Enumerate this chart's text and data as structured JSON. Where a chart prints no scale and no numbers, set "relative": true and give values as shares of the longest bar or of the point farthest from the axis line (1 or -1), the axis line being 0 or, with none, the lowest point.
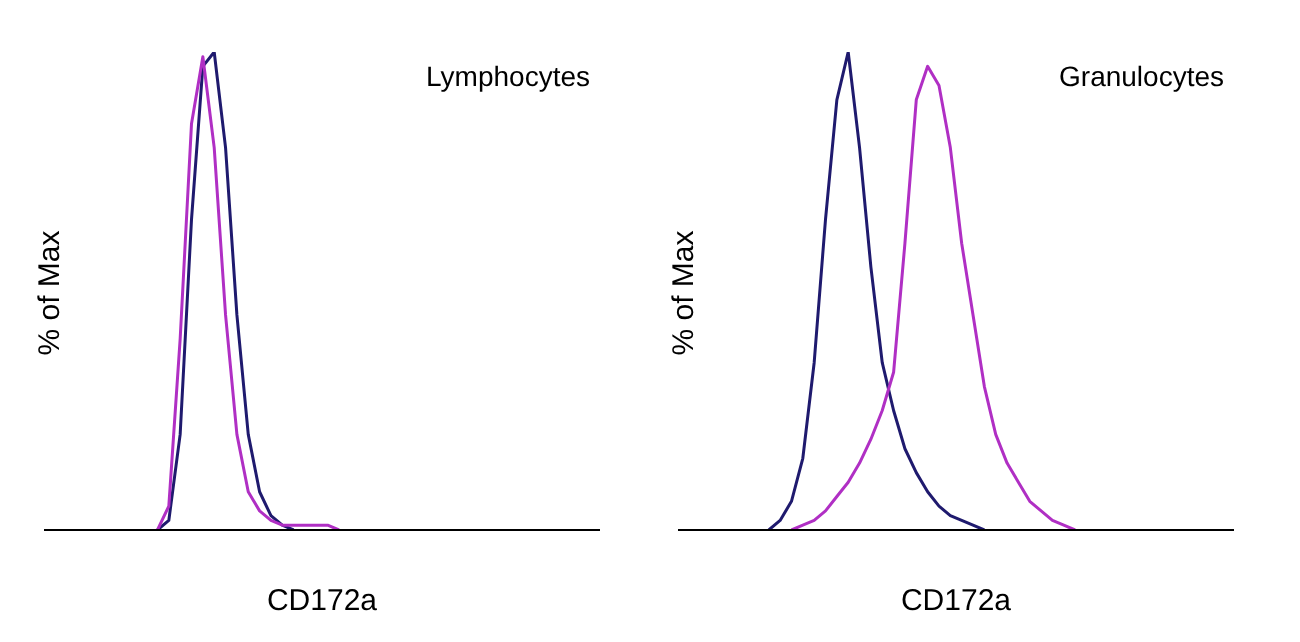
{
  "chart_data": [
    {
      "type": "line",
      "relative": true,
      "tick_labels": false,
      "legend": false,
      "grid": false,
      "marker": "none",
      "line_style": "solid",
      "xlabel": "CD172a",
      "ylabel": "% of Max",
      "annotations": [
        "Lymphocytes"
      ],
      "categories": [
        null,
        null,
        null,
        null,
        null,
        null,
        null,
        null,
        null,
        null,
        null,
        null,
        null,
        null,
        null,
        null,
        null,
        null,
        null,
        null,
        null,
        null,
        null,
        null,
        null,
        null,
        null,
        null,
        null,
        null,
        null,
        null,
        null,
        null,
        null,
        null,
        null,
        null,
        null,
        null,
        null,
        null,
        null,
        null,
        null,
        null,
        null,
        null,
        null,
        null
      ],
      "series": [
        {
          "color": "#1f1a6e",
          "values": [
            null,
            null,
            null,
            null,
            null,
            null,
            null,
            null,
            null,
            null,
            0,
            0.02,
            0.2,
            0.65,
            0.97,
            1,
            0.8,
            0.45,
            0.2,
            0.08,
            0.03,
            0.01,
            0,
            null,
            null,
            null,
            null,
            null,
            null,
            null,
            null,
            null,
            null,
            null,
            null,
            null,
            null,
            null,
            null,
            null,
            null,
            null,
            null,
            null,
            null,
            null,
            null,
            null,
            null,
            null
          ]
        },
        {
          "color": "#b02fc4",
          "values": [
            null,
            null,
            null,
            null,
            null,
            null,
            null,
            null,
            null,
            null,
            0,
            0.05,
            0.4,
            0.85,
            0.99,
            0.8,
            0.45,
            0.2,
            0.08,
            0.04,
            0.02,
            0.01,
            0.01,
            0.01,
            0.01,
            0.01,
            0,
            null,
            null,
            null,
            null,
            null,
            null,
            null,
            null,
            null,
            null,
            null,
            null,
            null,
            null,
            null,
            null,
            null,
            null,
            null,
            null,
            null,
            null,
            null
          ]
        }
      ]
    },
    {
      "type": "line",
      "relative": true,
      "tick_labels": false,
      "legend": false,
      "grid": false,
      "marker": "none",
      "line_style": "solid",
      "xlabel": "CD172a",
      "ylabel": "% of Max",
      "annotations": [
        "Granulocytes"
      ],
      "categories": [
        null,
        null,
        null,
        null,
        null,
        null,
        null,
        null,
        null,
        null,
        null,
        null,
        null,
        null,
        null,
        null,
        null,
        null,
        null,
        null,
        null,
        null,
        null,
        null,
        null,
        null,
        null,
        null,
        null,
        null,
        null,
        null,
        null,
        null,
        null,
        null,
        null,
        null,
        null,
        null,
        null,
        null,
        null,
        null,
        null,
        null,
        null,
        null,
        null,
        null
      ],
      "series": [
        {
          "color": "#1f1a6e",
          "values": [
            null,
            null,
            null,
            null,
            null,
            null,
            null,
            null,
            0,
            0.02,
            0.06,
            0.15,
            0.35,
            0.65,
            0.9,
            1,
            0.8,
            0.55,
            0.35,
            0.25,
            0.17,
            0.12,
            0.08,
            0.05,
            0.03,
            0.02,
            0.01,
            0,
            null,
            null,
            null,
            null,
            null,
            null,
            null,
            null,
            null,
            null,
            null,
            null,
            null,
            null,
            null,
            null,
            null,
            null,
            null,
            null,
            null,
            null
          ]
        },
        {
          "color": "#b02fc4",
          "values": [
            null,
            null,
            null,
            null,
            null,
            null,
            null,
            null,
            null,
            null,
            0,
            0.01,
            0.02,
            0.04,
            0.07,
            0.1,
            0.14,
            0.19,
            0.25,
            0.33,
            0.6,
            0.9,
            0.97,
            0.93,
            0.8,
            0.6,
            0.45,
            0.3,
            0.2,
            0.14,
            0.1,
            0.06,
            0.04,
            0.02,
            0.01,
            0,
            null,
            null,
            null,
            null,
            null,
            null,
            null,
            null,
            null,
            null,
            null,
            null,
            null,
            null
          ]
        }
      ]
    }
  ]
}
